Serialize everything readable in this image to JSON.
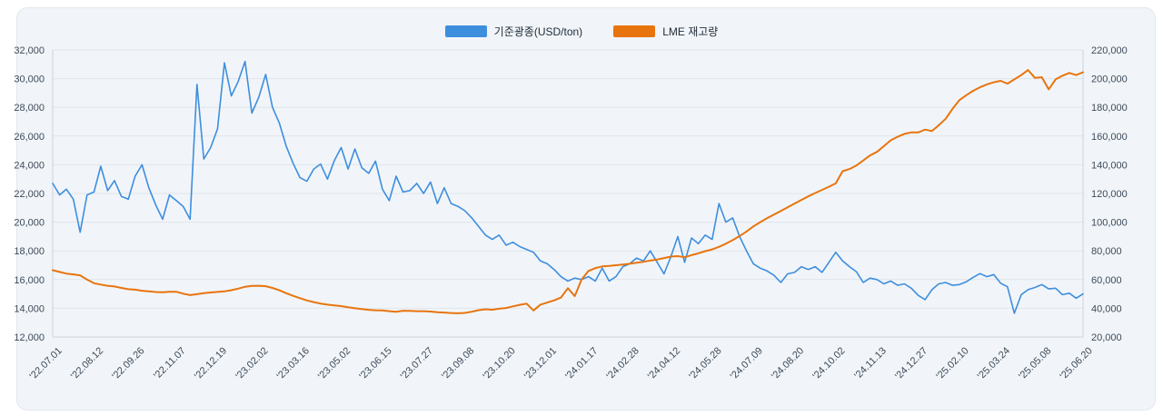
{
  "legend": {
    "series": [
      {
        "id": "price",
        "label": "기준광종(USD/ton)",
        "color": "#3e8ede"
      },
      {
        "id": "stock",
        "label": "LME 재고량",
        "color": "#e8740e"
      }
    ]
  },
  "colors": {
    "card_background": "#f1f5f9",
    "page_background": "#ffffff",
    "grid_line": "#dfe5eb",
    "axis_line": "#c9d2da",
    "tick_text": "#3e4a59",
    "price_line": "#3e8ede",
    "stock_line": "#e8740e"
  },
  "chart_data": {
    "type": "line",
    "title": "",
    "legend_position": "top-center",
    "grid": "horizontal-only",
    "x_ticks": [
      "'22.07.01",
      "'22.08.12",
      "'22.09.26",
      "'22.11.07",
      "'22.12.19",
      "'23.02.02",
      "'23.03.16",
      "'23.05.02",
      "'23.06.15",
      "'23.07.27",
      "'23.09.08",
      "'23.10.20",
      "'23.12.01",
      "'24.01.17",
      "'24.02.28",
      "'24.04.12",
      "'24.05.28",
      "'24.07.09",
      "'24.08.20",
      "'24.10.02",
      "'24.11.13",
      "'24.12.27",
      "'25.02.10",
      "'25.03.24",
      "'25.05.08",
      "'25.06.20"
    ],
    "y_left": {
      "name": "기준광종(USD/ton)",
      "min": 12000,
      "max": 32000,
      "ticks": [
        "12,000",
        "14,000",
        "16,000",
        "18,000",
        "20,000",
        "22,000",
        "24,000",
        "26,000",
        "28,000",
        "30,000",
        "32,000"
      ]
    },
    "y_right": {
      "name": "LME 재고량",
      "min": 20000,
      "max": 220000,
      "ticks": [
        "20,000",
        "40,000",
        "60,000",
        "80,000",
        "100,000",
        "120,000",
        "140,000",
        "160,000",
        "180,000",
        "200,000",
        "220,000"
      ]
    },
    "series": [
      {
        "id": "price",
        "name": "기준광종(USD/ton)",
        "axis": "left",
        "color": "#3e8ede",
        "width": 1.6,
        "values": [
          22700,
          21900,
          22300,
          21600,
          19300,
          21900,
          22100,
          23900,
          22200,
          22900,
          21800,
          21600,
          23200,
          24000,
          22400,
          21200,
          20200,
          21900,
          21500,
          21100,
          20200,
          29600,
          24400,
          25200,
          26500,
          31100,
          28800,
          29800,
          31200,
          27600,
          28700,
          30300,
          28000,
          26900,
          25300,
          24100,
          23100,
          22850,
          23700,
          24050,
          23000,
          24300,
          25200,
          23700,
          25100,
          23800,
          23400,
          24250,
          22300,
          21500,
          23200,
          22100,
          22200,
          22700,
          22000,
          22800,
          21300,
          22400,
          21300,
          21100,
          20800,
          20300,
          19700,
          19100,
          18800,
          19100,
          18400,
          18600,
          18300,
          18100,
          17900,
          17300,
          17100,
          16700,
          16200,
          15900,
          16100,
          16000,
          16200,
          15900,
          16800,
          15900,
          16200,
          16900,
          17100,
          17500,
          17300,
          18000,
          17200,
          16400,
          17600,
          19000,
          17200,
          18900,
          18500,
          19100,
          18800,
          21300,
          20000,
          20300,
          19000,
          18000,
          17100,
          16800,
          16600,
          16300,
          15800,
          16400,
          16500,
          16900,
          16700,
          16900,
          16500,
          17200,
          17900,
          17300,
          16900,
          16550,
          15800,
          16100,
          16000,
          15700,
          15900,
          15600,
          15700,
          15400,
          14900,
          14600,
          15300,
          15700,
          15800,
          15600,
          15650,
          15850,
          16150,
          16420,
          16200,
          16350,
          15750,
          15500,
          13650,
          14950,
          15300,
          15450,
          15650,
          15350,
          15400,
          14950,
          15050,
          14700,
          15000
        ]
      },
      {
        "id": "stock",
        "name": "LME 재고량",
        "axis": "right",
        "color": "#e8740e",
        "width": 2,
        "values": [
          66500,
          65300,
          64200,
          63600,
          63000,
          60000,
          57500,
          56500,
          55700,
          55200,
          54200,
          53300,
          53000,
          52200,
          51800,
          51300,
          51200,
          51500,
          51500,
          50200,
          49200,
          49800,
          50500,
          51000,
          51400,
          51800,
          52600,
          53700,
          55000,
          55600,
          55700,
          55400,
          54200,
          52500,
          50500,
          48700,
          47000,
          45500,
          44300,
          43300,
          42500,
          42000,
          41500,
          40700,
          40000,
          39400,
          38900,
          38600,
          38500,
          38000,
          37600,
          38300,
          38200,
          38000,
          38000,
          37700,
          37300,
          37000,
          36700,
          36500,
          36800,
          37600,
          38700,
          39300,
          39000,
          39700,
          40200,
          41300,
          42400,
          43200,
          38500,
          42500,
          44000,
          45500,
          47500,
          54000,
          48500,
          60000,
          66000,
          68000,
          69200,
          69500,
          70000,
          70500,
          71000,
          71700,
          72400,
          73200,
          74000,
          75000,
          76000,
          76300,
          75600,
          77000,
          78300,
          79800,
          81000,
          82800,
          85000,
          87500,
          90300,
          93500,
          97000,
          100000,
          102700,
          105300,
          107800,
          110400,
          113000,
          115500,
          118000,
          120300,
          122500,
          124700,
          127000,
          135500,
          137000,
          139500,
          143000,
          146500,
          149000,
          153000,
          157000,
          159500,
          161500,
          162500,
          162500,
          164500,
          163500,
          167500,
          172000,
          179000,
          185000,
          188500,
          191500,
          194000,
          196000,
          197500,
          198500,
          196500,
          199500,
          202500,
          206000,
          200500,
          201000,
          192500,
          199500,
          202000,
          204000,
          202500,
          204500
        ]
      }
    ]
  }
}
